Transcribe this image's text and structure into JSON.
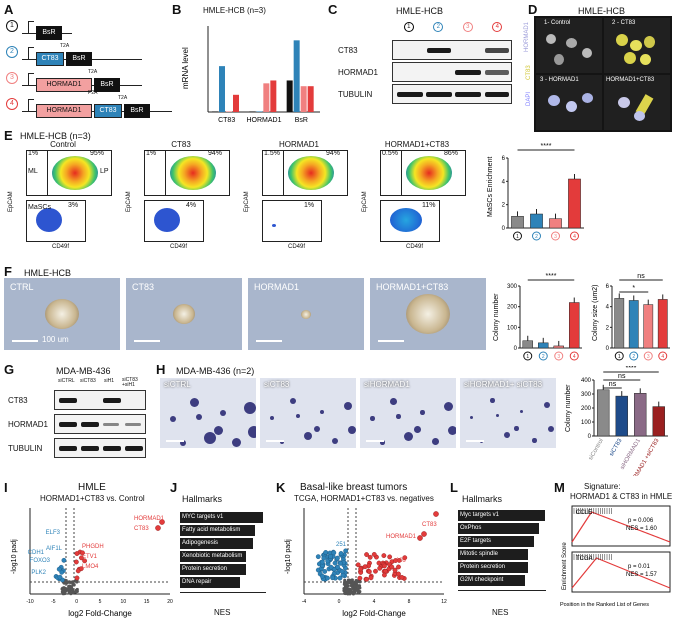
{
  "panels": {
    "A": "A",
    "B": "B",
    "C": "C",
    "D": "D",
    "E": "E",
    "F": "F",
    "G": "G",
    "H": "H",
    "I": "I",
    "J": "J",
    "K": "K",
    "L": "L",
    "M": "M"
  },
  "constructs": {
    "numbers": [
      "1",
      "2",
      "3",
      "4"
    ],
    "bsr": "BsR",
    "ct83": "CT83",
    "hormad1": "HORMAD1",
    "t2a": "T2A",
    "p2a": "P2A"
  },
  "panel_b": {
    "title": "HMLE-HCB (n=3)",
    "ylabel": "mRNA level",
    "groups": [
      "CT83",
      "HORMAD1",
      "BsR"
    ]
  },
  "panel_c": {
    "title": "HMLE-HCB",
    "rows": [
      "CT83",
      "HORMAD1",
      "TUBULIN"
    ],
    "lanes": [
      "1",
      "2",
      "3",
      "4"
    ]
  },
  "panel_d": {
    "title": "HMLE-HCB",
    "labels": [
      "1- Control",
      "2 - CT83",
      "3 - HORMAD1",
      "HORMAD1+CT83"
    ],
    "stains": [
      "HORMAD1",
      "CT83",
      "DAPI"
    ]
  },
  "panel_e": {
    "title": "HMLE-HCB (n=3)",
    "plots": [
      {
        "name": "Control",
        "tl": "1%",
        "tr": "95%",
        "bl": "3%",
        "ml": "ML",
        "lp": "LP",
        "masc": "MaSCs"
      },
      {
        "name": "CT83",
        "tl": "1%",
        "tr": "94%",
        "bl": "4%"
      },
      {
        "name": "HORMAD1",
        "tl": "1.5%",
        "tr": "94%",
        "bl": "1%"
      },
      {
        "name": "HORMAD1+CT83",
        "tl": "0.5%",
        "tr": "86%",
        "bl": "11%"
      }
    ],
    "xlabel": "CD49f",
    "ylabel": "EpCAM",
    "bar_ylabel": "MaSCs Enrichment",
    "sig": "****",
    "bar_yticks": [
      "0",
      "2",
      "4",
      "6"
    ]
  },
  "panel_f": {
    "title": "HMLE-HCB",
    "labels": [
      "CTRL",
      "CT83",
      "HORMAD1",
      "HORMAD1+CT83"
    ],
    "scale": "100 um",
    "chart1_ylabel": "Colony number",
    "chart1_sig": "****",
    "chart1_yticks": [
      "0",
      "100",
      "200",
      "300"
    ],
    "chart2_ylabel": "Colony size (um2)",
    "chart2_sig1": "*",
    "chart2_sig2": "ns",
    "chart2_yticks": [
      "0",
      "2",
      "4",
      "6"
    ]
  },
  "panel_g": {
    "title": "MDA-MB-436",
    "lanes": [
      "siCTRL",
      "siCT83",
      "siH1",
      "siCT83 +siH1"
    ],
    "rows": [
      "CT83",
      "HORMAD1",
      "TUBULIN"
    ]
  },
  "panel_h": {
    "title": "MDA-MB-436 (n=2)",
    "labels": [
      "siCTRL",
      "siCT83",
      "siHORMAD1",
      "siHORMAD1+ siCT83"
    ],
    "ylabel": "Colony number",
    "sig1": "ns",
    "sig2": "ns",
    "sig3": "****",
    "yticks": [
      "0",
      "100",
      "200",
      "300",
      "400"
    ],
    "xlabels": [
      "siControl",
      "siCT83",
      "siHORMAD1",
      "siHORMAD1 +siCT83"
    ]
  },
  "panel_i": {
    "title1": "HMLE",
    "title2": "HORMAD1+CT83 vs. Control",
    "xlabel": "log2 Fold-Change",
    "ylabel": "-log10 padj",
    "up": [
      "HORMAD1",
      "CT83",
      "PHGDH",
      "ETV1",
      "LMO4"
    ],
    "down": [
      "ELF3",
      "CDH1",
      "AIF1L",
      "FOXO3",
      "PLK2"
    ],
    "xticks": [
      "-10",
      "-5",
      "0",
      "5",
      "10",
      "15",
      "20"
    ]
  },
  "panel_j": {
    "title": "Hallmarks",
    "xlabel": "NES",
    "bars": [
      "MYC targets v1",
      "Fatty acid metabolism",
      "Adipogenesis",
      "Xenobiotic metabolism",
      "Protein secretion",
      "DNA repair"
    ],
    "xticks": [
      "0",
      "1",
      "2",
      "3"
    ]
  },
  "panel_k": {
    "title1": "Basal-like breast tumors",
    "title2": "TCGA, HORMAD1+CT83 vs. negatives",
    "xlabel": "log2 Fold-Change",
    "ylabel": "-log10 padj",
    "up_labels": [
      "CT83",
      "HORMAD1"
    ],
    "n_down": "251",
    "n_up": "109",
    "xticks": [
      "-4",
      "0",
      "4",
      "8",
      "12"
    ]
  },
  "panel_l": {
    "title": "Hallmarks",
    "xlabel": "NES",
    "bars": [
      "Myc targets v1",
      "OxPhos",
      "E2F targets",
      "Mitotic spindle",
      "Protein secretion",
      "G2M checkpoint"
    ],
    "xticks": [
      "0",
      "1",
      "2",
      "3"
    ]
  },
  "panel_m": {
    "title1": "Signature:",
    "title2": "HORMAD1 & CT83 in HMLE",
    "ccle_label": "CCLE",
    "ccle_p": "p = 0.006",
    "ccle_nes": "NES = 1.60",
    "tcga_label": "TCGA",
    "tcga_p": "p = 0.01",
    "tcga_nes": "NES = 1.57",
    "ylabel": "Enrichment Score",
    "xlabel": "Position in the Ranked List of Genes"
  },
  "chart_data": [
    {
      "type": "bar",
      "title": "HMLE-HCB (n=3)",
      "ylabel": "mRNA level",
      "categories": [
        "CT83",
        "HORMAD1",
        "BsR"
      ],
      "series": [
        {
          "values": [
            0.2,
            0.2,
            11
          ]
        },
        {
          "values": [
            16,
            0.2,
            25
          ]
        },
        {
          "values": [
            0.2,
            10,
            9
          ]
        },
        {
          "values": [
            6,
            11,
            9
          ]
        }
      ],
      "ylim": [
        0,
        30
      ]
    },
    {
      "type": "bar",
      "ylabel": "MaSCs Enrichment",
      "categories": [
        "1",
        "2",
        "3",
        "4"
      ],
      "values": [
        1.0,
        1.2,
        0.8,
        4.2
      ],
      "ylim": [
        0,
        6
      ]
    },
    {
      "type": "bar",
      "ylabel": "Colony number",
      "categories": [
        "1",
        "2",
        "3",
        "4"
      ],
      "values": [
        35,
        25,
        10,
        220
      ],
      "ylim": [
        0,
        300
      ]
    },
    {
      "type": "bar",
      "ylabel": "Colony size (um2)",
      "categories": [
        "1",
        "2",
        "3",
        "4"
      ],
      "values": [
        4.8,
        4.6,
        4.2,
        4.7
      ],
      "ylim": [
        0,
        6
      ]
    },
    {
      "type": "bar",
      "ylabel": "Colony number",
      "categories": [
        "siControl",
        "siCT83",
        "siHORMAD1",
        "siHORMAD1 +siCT83"
      ],
      "values": [
        330,
        285,
        305,
        210
      ],
      "ylim": [
        0,
        400
      ]
    },
    {
      "type": "bar",
      "title": "Hallmarks",
      "xlabel": "NES",
      "categories": [
        "MYC targets v1",
        "Fatty acid metabolism",
        "Adipogenesis",
        "Xenobiotic metabolism",
        "Protein secretion",
        "DNA repair"
      ],
      "values": [
        2.9,
        2.6,
        2.55,
        2.3,
        2.3,
        2.1
      ],
      "xlim": [
        0,
        3
      ]
    },
    {
      "type": "bar",
      "title": "Hallmarks",
      "xlabel": "NES",
      "categories": [
        "Myc targets v1",
        "OxPhos",
        "E2F targets",
        "Mitotic spindle",
        "Protein secretion",
        "G2M checkpoint"
      ],
      "values": [
        2.95,
        2.75,
        2.6,
        2.4,
        2.4,
        2.3
      ],
      "xlim": [
        0,
        3
      ]
    }
  ],
  "colors": {
    "blue": "#2e83b8",
    "red": "#e33b3b",
    "grey": "#8a8a8a",
    "black": "#111111",
    "pink": "#f08080",
    "ltblue": "#7fbde0"
  }
}
